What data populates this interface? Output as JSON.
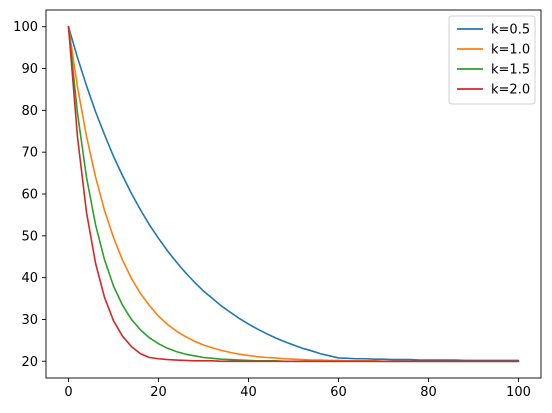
{
  "chart_data": {
    "type": "line",
    "title": "",
    "xlabel": "",
    "ylabel": "",
    "xlim": [
      -5,
      105
    ],
    "ylim": [
      16,
      104
    ],
    "x_ticks": [
      0,
      20,
      40,
      60,
      80,
      100
    ],
    "y_ticks": [
      20,
      30,
      40,
      50,
      60,
      70,
      80,
      90,
      100
    ],
    "x_tick_labels": [
      "0",
      "20",
      "40",
      "60",
      "80",
      "100"
    ],
    "y_tick_labels": [
      "20",
      "30",
      "40",
      "50",
      "60",
      "70",
      "80",
      "90",
      "100"
    ],
    "grid": false,
    "legend_position": "top-right",
    "x": [
      0,
      2,
      4,
      6,
      8,
      10,
      12,
      14,
      16,
      18,
      20,
      22,
      24,
      26,
      28,
      30,
      32,
      34,
      36,
      38,
      40,
      42,
      44,
      46,
      48,
      50,
      52,
      54,
      56,
      58,
      60,
      62,
      64,
      66,
      68,
      70,
      72,
      74,
      76,
      78,
      80,
      82,
      84,
      86,
      88,
      90,
      92,
      94,
      96,
      98,
      100
    ],
    "series": [
      {
        "name": "k=0.5",
        "color": "#1f77b4",
        "values": [
          100.0,
          92.6,
          85.9,
          79.7,
          74.2,
          69.0,
          64.4,
          60.1,
          56.2,
          52.6,
          49.4,
          46.4,
          43.7,
          41.2,
          38.9,
          36.8,
          35.0,
          33.2,
          31.7,
          30.2,
          28.9,
          27.7,
          26.6,
          25.6,
          24.7,
          23.9,
          23.1,
          22.5,
          21.8,
          21.3,
          20.8,
          20.7,
          20.6,
          20.6,
          20.5,
          20.5,
          20.4,
          20.4,
          20.4,
          20.3,
          20.3,
          20.3,
          20.3,
          20.3,
          20.2,
          20.2,
          20.2,
          20.2,
          20.2,
          20.2,
          20.2
        ]
      },
      {
        "name": "k=1.0",
        "color": "#ff7f0e",
        "values": [
          100.0,
          85.6,
          73.8,
          64.1,
          56.1,
          49.6,
          44.2,
          39.8,
          36.2,
          33.3,
          30.8,
          28.8,
          27.2,
          25.9,
          24.8,
          23.9,
          23.2,
          22.6,
          22.1,
          21.7,
          21.4,
          21.1,
          20.9,
          20.8,
          20.6,
          20.5,
          20.4,
          20.3,
          20.3,
          20.2,
          20.2,
          20.1,
          20.1,
          20.1,
          20.1,
          20.0,
          20.0,
          20.0,
          20.0,
          20.0,
          20.0,
          20.0,
          20.0,
          20.0,
          20.0,
          20.0,
          20.0,
          20.0,
          20.0,
          20.0,
          20.0
        ]
      },
      {
        "name": "k=1.5",
        "color": "#2ca02c",
        "values": [
          100.0,
          79.3,
          64.0,
          52.7,
          44.3,
          38.0,
          33.4,
          30.0,
          27.5,
          25.6,
          24.2,
          23.1,
          22.3,
          21.7,
          21.3,
          20.9,
          20.7,
          20.5,
          20.4,
          20.3,
          20.2,
          20.1,
          20.1,
          20.1,
          20.0,
          20.0,
          20.0,
          20.0,
          20.0,
          20.0,
          20.0,
          20.0,
          20.0,
          20.0,
          20.0,
          20.0,
          20.0,
          20.0,
          20.0,
          20.0,
          20.0,
          20.0,
          20.0,
          20.0,
          20.0,
          20.0,
          20.0,
          20.0,
          20.0,
          20.0,
          20.0
        ]
      },
      {
        "name": "k=2.0",
        "color": "#d62728",
        "values": [
          100.0,
          73.6,
          55.6,
          43.5,
          35.3,
          29.7,
          26.0,
          23.5,
          21.8,
          20.9,
          20.6,
          20.4,
          20.3,
          20.2,
          20.1,
          20.1,
          20.1,
          20.0,
          20.0,
          20.0,
          20.0,
          20.0,
          20.0,
          20.0,
          20.0,
          20.0,
          20.0,
          20.0,
          20.0,
          20.0,
          20.0,
          20.0,
          20.0,
          20.0,
          20.0,
          20.0,
          20.0,
          20.0,
          20.0,
          20.0,
          20.0,
          20.0,
          20.0,
          20.0,
          20.0,
          20.0,
          20.0,
          20.0,
          20.0,
          20.0,
          20.0
        ]
      }
    ]
  }
}
